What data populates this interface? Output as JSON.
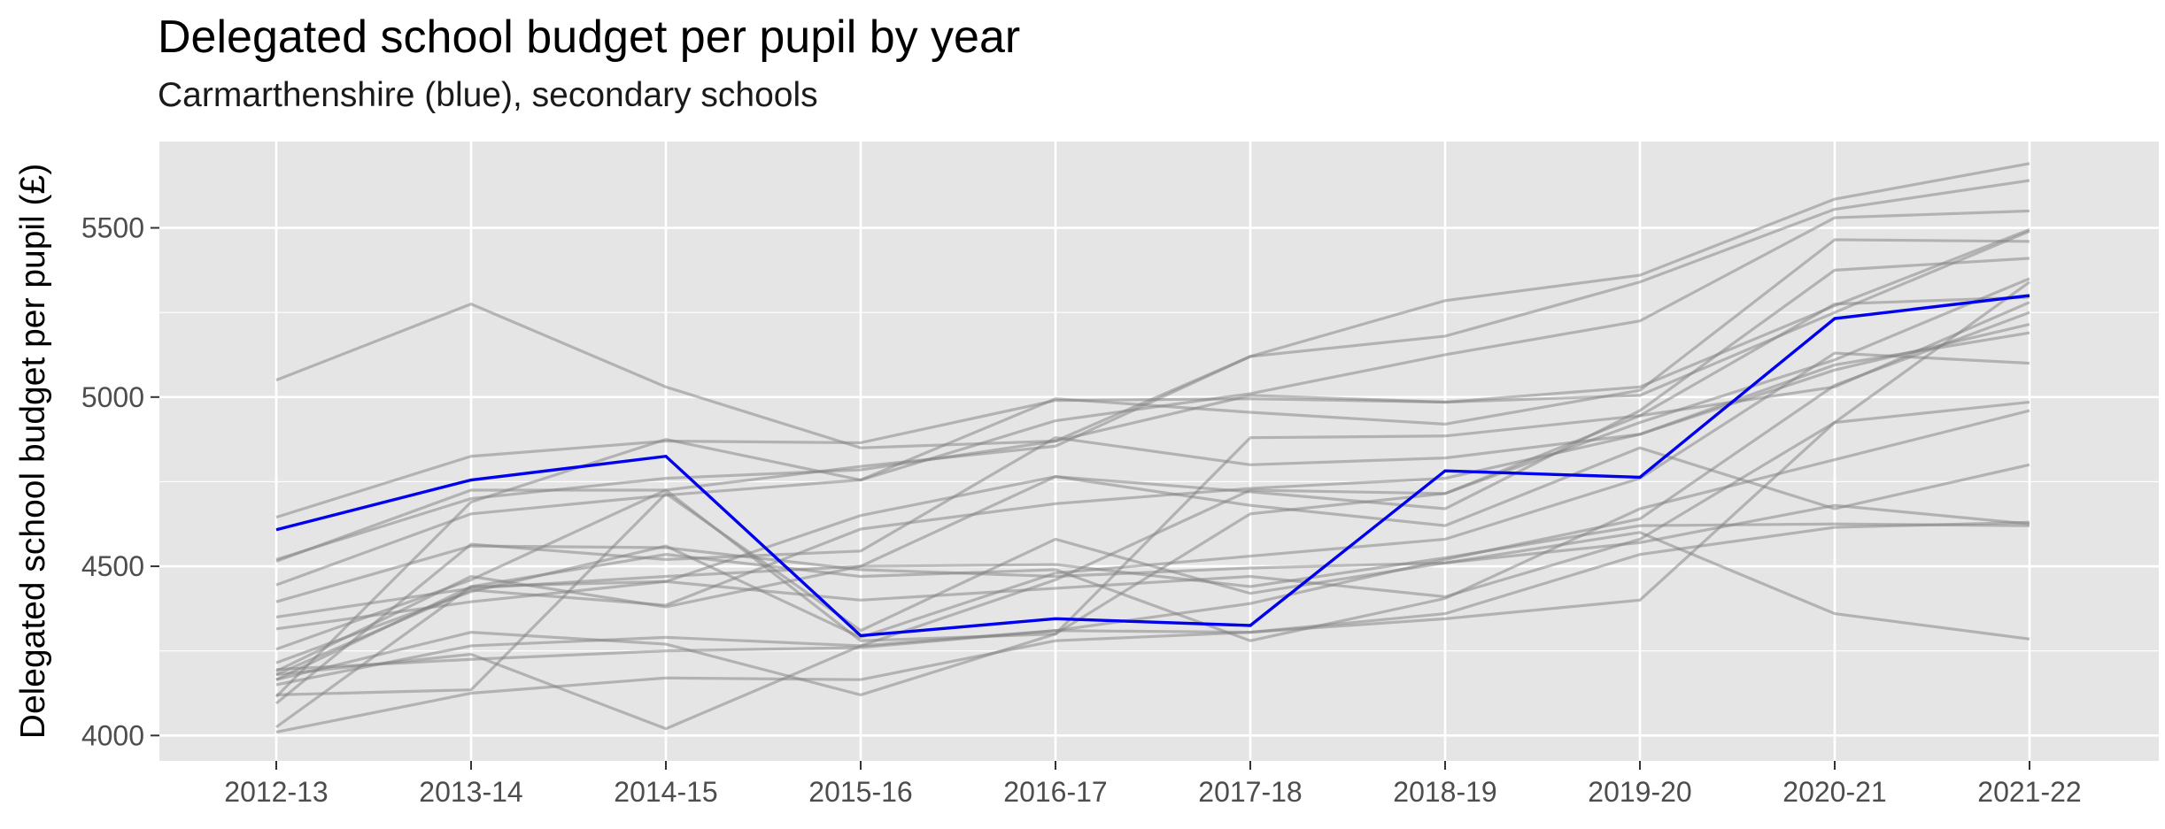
{
  "chart_data": {
    "type": "line",
    "title": "Delegated school budget per pupil by year",
    "subtitle": "Carmarthenshire (blue), secondary schools",
    "xlabel": "",
    "ylabel": "Delegated school budget per pupil (£)",
    "categories": [
      "2012-13",
      "2013-14",
      "2014-15",
      "2015-16",
      "2016-17",
      "2017-18",
      "2018-19",
      "2019-20",
      "2020-21",
      "2021-22"
    ],
    "y_ticks": [
      4000,
      4500,
      5000,
      5500
    ],
    "ylim": [
      3925,
      5755
    ],
    "grid": true,
    "legend": "none",
    "colors": {
      "highlight": "#0000ee",
      "other": "#7f7f7f",
      "panel": "#e5e5e5",
      "grid": "#ffffff"
    },
    "highlight_series": {
      "name": "Carmarthenshire",
      "values": [
        4608,
        4755,
        4825,
        4295,
        4345,
        4325,
        4782,
        4763,
        5232,
        5300
      ]
    },
    "series": [
      {
        "values": [
          5050,
          5275,
          5030,
          4850,
          4870,
          5005,
          4985,
          5030,
          5270,
          5495
        ]
      },
      {
        "values": [
          4645,
          4825,
          4870,
          4865,
          4990,
          4995,
          4985,
          5005,
          5250,
          5490
        ]
      },
      {
        "values": [
          4515,
          4725,
          4725,
          4795,
          4855,
          5120,
          5285,
          5360,
          5585,
          5690
        ]
      },
      {
        "values": [
          4520,
          4700,
          4760,
          4785,
          4870,
          5120,
          5180,
          5340,
          5555,
          5640
        ]
      },
      {
        "values": [
          4445,
          4655,
          4710,
          4755,
          4930,
          5010,
          5125,
          5225,
          5530,
          5550
        ]
      },
      {
        "values": [
          4395,
          4560,
          4555,
          4490,
          4470,
          4495,
          4510,
          4570,
          4680,
          4625
        ]
      },
      {
        "values": [
          4350,
          4435,
          4470,
          4500,
          4505,
          4440,
          4525,
          4620,
          4625,
          4620
        ]
      },
      {
        "values": [
          4315,
          4395,
          4455,
          4650,
          4765,
          4720,
          4670,
          4960,
          5375,
          5410
        ]
      },
      {
        "values": [
          4255,
          4460,
          4725,
          4280,
          4300,
          4880,
          4885,
          4945,
          5030,
          5280
        ]
      },
      {
        "values": [
          4195,
          4225,
          4250,
          4260,
          4310,
          4305,
          4360,
          4535,
          4615,
          4630
        ]
      },
      {
        "values": [
          4180,
          4430,
          4385,
          4610,
          4685,
          4730,
          4760,
          4890,
          5080,
          5215
        ]
      },
      {
        "values": [
          4165,
          4305,
          4270,
          4120,
          4300,
          4655,
          4715,
          4925,
          5110,
          5350
        ]
      },
      {
        "values": [
          4150,
          4265,
          4290,
          4265,
          4310,
          4390,
          4520,
          4640,
          5035,
          5250
        ]
      },
      {
        "values": [
          4120,
          4135,
          4715,
          4310,
          4580,
          4420,
          4510,
          4600,
          4360,
          4285
        ]
      },
      {
        "values": [
          4095,
          4565,
          4520,
          4545,
          4880,
          4800,
          4820,
          4890,
          5095,
          5190
        ]
      },
      {
        "values": [
          4025,
          4440,
          4455,
          4400,
          4435,
          4470,
          4410,
          4580,
          4925,
          4985
        ]
      },
      {
        "values": [
          4010,
          4125,
          4170,
          4165,
          4280,
          4305,
          4345,
          4400,
          4925,
          5340
        ]
      },
      {
        "values": [
          4180,
          4240,
          4020,
          4265,
          4460,
          4725,
          4715,
          4945,
          5275,
          5295
        ]
      },
      {
        "values": [
          4115,
          4690,
          4875,
          4755,
          4995,
          4955,
          4920,
          5020,
          5465,
          5460
        ]
      },
      {
        "values": [
          4165,
          4440,
          4535,
          4470,
          4490,
          4280,
          4405,
          4670,
          4815,
          4960
        ]
      },
      {
        "values": [
          4215,
          4425,
          4560,
          4290,
          4480,
          4530,
          4580,
          4760,
          5130,
          5100
        ]
      },
      {
        "values": [
          4190,
          4470,
          4380,
          4500,
          4765,
          4680,
          4620,
          4850,
          4670,
          4800
        ]
      }
    ]
  }
}
